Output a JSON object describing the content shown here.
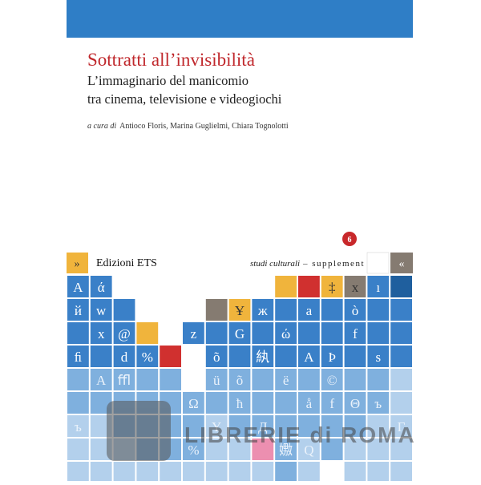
{
  "cover": {
    "title": "Sottratti all’invisibilità",
    "subtitle_lines": [
      "L’immaginario del manicomio",
      "tra cinema, televisione e videogiochi"
    ],
    "editors_prefix": "a cura di",
    "editors": "Antioco Floris, Marina Guglielmi, Chiara Tognolotti",
    "volume": "6",
    "publisher": "Edizioni ETS",
    "series": "studi culturali",
    "series_suffix": "– supplement",
    "arrow_left": "»",
    "arrow_right": "«",
    "tile_glyphs": [
      "A",
      "ά",
      "‡",
      "x",
      "ı",
      "й",
      "w",
      "Ұ",
      "ж",
      "a",
      "ò",
      "x",
      "@",
      "z",
      "G",
      "ώ",
      "f",
      "ﬁ",
      "d",
      "%",
      "õ",
      "紈",
      "A",
      "Þ",
      "s",
      "A",
      "ﬄ",
      "ü",
      "õ",
      "ë",
      "©",
      "Ω",
      "ħ",
      "å",
      "f",
      "Θ",
      "ъ",
      "ъ",
      "Y",
      "Д",
      "Г",
      "%",
      "嫐",
      "Q"
    ],
    "watermark": "LIBRERIE di ROMA"
  }
}
